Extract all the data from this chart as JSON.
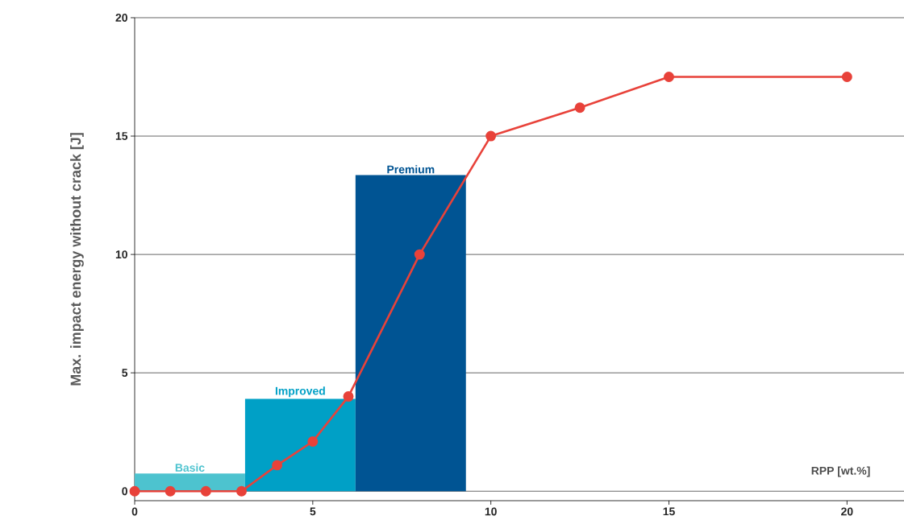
{
  "chart_data": {
    "type": "histogram",
    "ylabel": "Max. impact energy without crack [J]",
    "xlabel": "RPP [wt.%]",
    "xlim": [
      0,
      21.6
    ],
    "ylim": [
      -0.4,
      20
    ],
    "xticks": [
      0,
      5,
      10,
      15,
      20
    ],
    "yticks": [
      0,
      5,
      10,
      15,
      20
    ],
    "grid": "y",
    "marker": "circle",
    "series": [
      {
        "bins": [
          0,
          3.1,
          6.2,
          9.3
        ],
        "values": [
          0.75,
          3.9,
          13.35
        ],
        "colors": [
          "#4dc3cf",
          "#00a0c6",
          "#005493"
        ]
      },
      {
        "type": "line",
        "color": "#e8423a",
        "x": [
          0,
          1,
          2,
          3,
          4,
          5,
          6,
          8,
          10,
          12.5,
          15,
          20
        ],
        "values": [
          0,
          0,
          0,
          0,
          1.1,
          2.1,
          4,
          10,
          15,
          16.2,
          17.5,
          17.5
        ]
      }
    ],
    "annotations": [
      {
        "text": "Basic",
        "x": 1.55,
        "y": 0.75
      },
      {
        "text": "Improved",
        "x": 4.65,
        "y": 3.9
      },
      {
        "text": "Premium",
        "x": 7.75,
        "y": 13.35
      }
    ]
  }
}
